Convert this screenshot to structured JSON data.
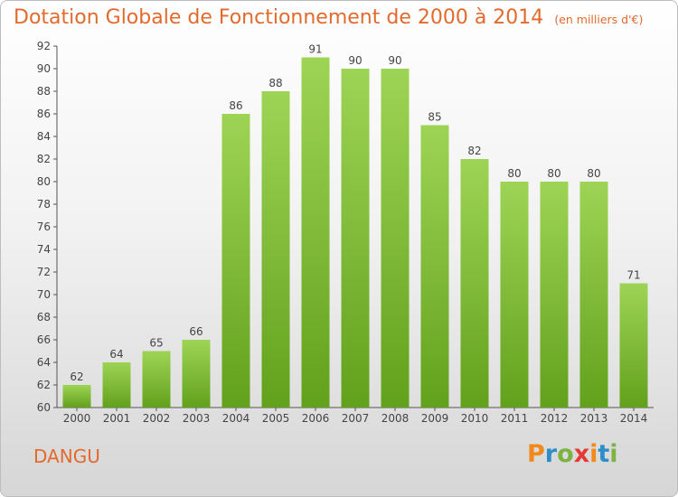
{
  "chart_data": {
    "type": "bar",
    "title": "Dotation Globale de Fonctionnement de 2000 à 2014",
    "subtitle": "(en milliers d'€)",
    "categories": [
      "2000",
      "2001",
      "2002",
      "2003",
      "2004",
      "2005",
      "2006",
      "2007",
      "2008",
      "2009",
      "2010",
      "2011",
      "2012",
      "2013",
      "2014"
    ],
    "values": [
      62,
      64,
      65,
      66,
      86,
      88,
      91,
      90,
      90,
      85,
      82,
      80,
      80,
      80,
      71
    ],
    "ylim": [
      60,
      92
    ],
    "yticks": [
      60,
      62,
      64,
      66,
      68,
      70,
      72,
      74,
      76,
      78,
      80,
      82,
      84,
      86,
      88,
      90,
      92
    ],
    "grid": false,
    "bar_color": "#7dbb34",
    "bar_color_light": "#9ed455"
  },
  "commune": "DANGU",
  "logo": {
    "letters": [
      "P",
      "r",
      "o",
      "x",
      "i",
      "t",
      "i"
    ],
    "colors": [
      "#f08a1d",
      "#2e8ec9",
      "#7cb342",
      "#e53935",
      "#f08a1d",
      "#2e8ec9",
      "#7cb342"
    ]
  },
  "colors": {
    "title": "#e26a2c",
    "axis": "#555555",
    "label": "#444444"
  }
}
